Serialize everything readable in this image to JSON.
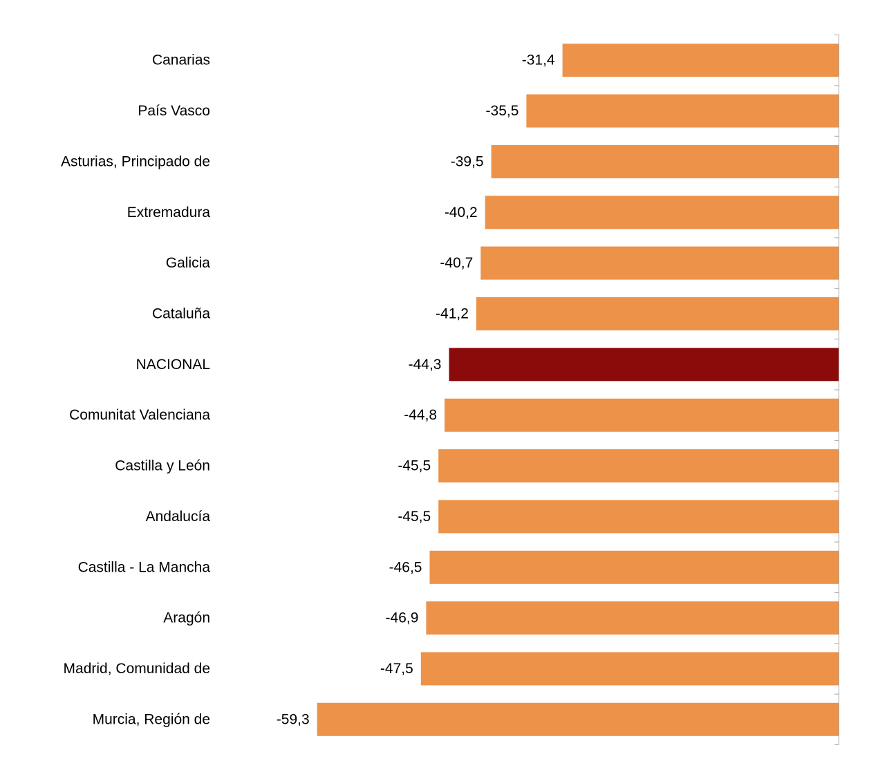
{
  "chart_data": {
    "type": "bar",
    "orientation": "horizontal",
    "categories": [
      "Canarias",
      "País Vasco",
      "Asturias, Principado de",
      "Extremadura",
      "Galicia",
      "Cataluña",
      "NACIONAL",
      "Comunitat Valenciana",
      "Castilla y León",
      "Andalucía",
      "Castilla - La Mancha",
      "Aragón",
      "Madrid, Comunidad de",
      "Murcia, Región de"
    ],
    "values": [
      -31.4,
      -35.5,
      -39.5,
      -40.2,
      -40.7,
      -41.2,
      -44.3,
      -44.8,
      -45.5,
      -45.5,
      -46.5,
      -46.9,
      -47.5,
      -59.3
    ],
    "value_labels": [
      "-31,4",
      "-35,5",
      "-39,5",
      "-40,2",
      "-40,7",
      "-41,2",
      "-44,3",
      "-44,8",
      "-45,5",
      "-45,5",
      "-46,5",
      "-46,9",
      "-47,5",
      "-59,3"
    ],
    "highlight_category": "NACIONAL",
    "xlim": [
      -65,
      0
    ],
    "grid": false,
    "legend": "none",
    "title": "",
    "xlabel": "",
    "ylabel": ""
  },
  "colors": {
    "bar": "#ED9249",
    "highlight": "#8B0B0B",
    "axis": "#A6A6A6",
    "text": "#000000"
  }
}
